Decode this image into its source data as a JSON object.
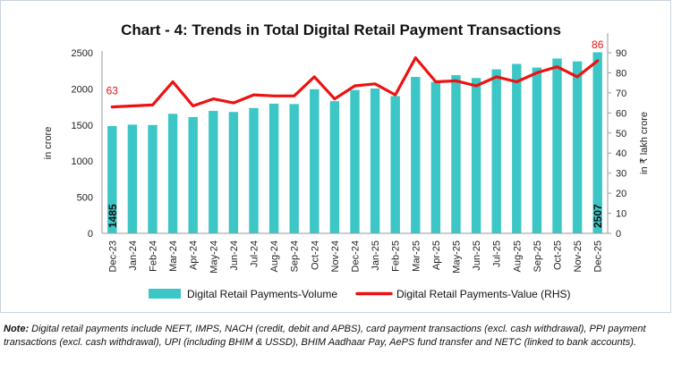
{
  "chart_data": {
    "type": "bar+line",
    "title": "Chart - 4: Trends in Total Digital Retail Payment Transactions",
    "categories": [
      "Dec-23",
      "Jan-24",
      "Feb-24",
      "Mar-24",
      "Apr-24",
      "May-24",
      "Jun-24",
      "Jul-24",
      "Aug-24",
      "Sep-24",
      "Oct-24",
      "Nov-24",
      "Dec-24",
      "Jan-25",
      "Feb-25",
      "Mar-25",
      "Apr-25",
      "May-25",
      "Jun-25",
      "Jul-25",
      "Aug-25",
      "Sep-25",
      "Oct-25",
      "Nov-25",
      "Dec-25"
    ],
    "series": [
      {
        "name": "Digital Retail Payments-Volume",
        "kind": "bar",
        "axis": "left",
        "color": "#3cc6c6",
        "values": [
          1485,
          1505,
          1500,
          1655,
          1610,
          1695,
          1680,
          1735,
          1795,
          1790,
          1995,
          1830,
          1985,
          2005,
          1900,
          2165,
          2095,
          2190,
          2150,
          2270,
          2345,
          2295,
          2420,
          2380,
          2507
        ]
      },
      {
        "name": "Digital Retail Payments-Value (RHS)",
        "kind": "line",
        "axis": "right",
        "color": "#ee1111",
        "values": [
          63,
          63.5,
          64,
          75.5,
          63.5,
          67,
          65,
          69,
          68.5,
          68.5,
          78,
          67,
          73.5,
          74.5,
          69,
          87.5,
          75.5,
          76,
          73.5,
          78,
          75.5,
          80,
          83,
          78,
          86
        ]
      }
    ],
    "ylabel": "in crore",
    "y2label": "in ₹ lakh crore",
    "ylim": [
      0,
      2500
    ],
    "y_ticks": [
      0,
      500,
      1000,
      1500,
      2000,
      2500
    ],
    "y2lim": [
      0,
      90
    ],
    "y2_ticks": [
      0,
      10,
      20,
      30,
      40,
      50,
      60,
      70,
      80,
      90
    ],
    "data_labels": [
      {
        "series": 0,
        "index": 0,
        "text": "1485"
      },
      {
        "series": 0,
        "index": 24,
        "text": "2507"
      },
      {
        "series": 1,
        "index": 0,
        "text": "63"
      },
      {
        "series": 1,
        "index": 24,
        "text": "86"
      }
    ],
    "legend_position": "bottom",
    "grid": false
  },
  "note": {
    "label": "Note:",
    "text": "Digital retail payments include NEFT, IMPS, NACH (credit, debit and APBS), card payment transactions (excl. cash withdrawal), PPI payment transactions (excl. cash withdrawal), UPI (including BHIM & USSD), BHIM Aadhaar Pay, AePS fund transfer and NETC (linked to bank accounts)."
  }
}
